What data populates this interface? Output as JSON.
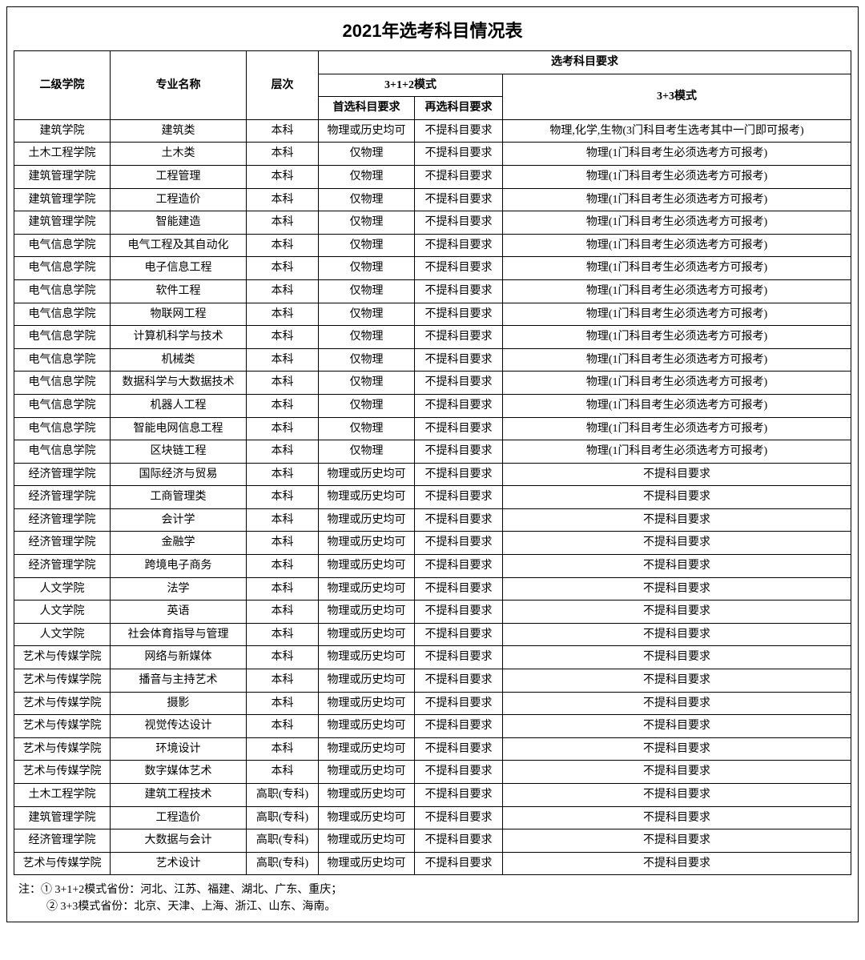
{
  "title": "2021年选考科目情况表",
  "header": {
    "col1": "二级学院",
    "col2": "专业名称",
    "col3": "层次",
    "group_top": "选考科目要求",
    "mode312": "3+1+2模式",
    "mode33": "3+3模式",
    "first_choice": "首选科目要求",
    "second_choice": "再选科目要求"
  },
  "rows": [
    {
      "college": "建筑学院",
      "major": "建筑类",
      "level": "本科",
      "first": "物理或历史均可",
      "second": "不提科目要求",
      "mode33": "物理,化学,生物(3门科目考生选考其中一门即可报考)"
    },
    {
      "college": "土木工程学院",
      "major": "土木类",
      "level": "本科",
      "first": "仅物理",
      "second": "不提科目要求",
      "mode33": "物理(1门科目考生必须选考方可报考)"
    },
    {
      "college": "建筑管理学院",
      "major": "工程管理",
      "level": "本科",
      "first": "仅物理",
      "second": "不提科目要求",
      "mode33": "物理(1门科目考生必须选考方可报考)"
    },
    {
      "college": "建筑管理学院",
      "major": "工程造价",
      "level": "本科",
      "first": "仅物理",
      "second": "不提科目要求",
      "mode33": "物理(1门科目考生必须选考方可报考)"
    },
    {
      "college": "建筑管理学院",
      "major": "智能建造",
      "level": "本科",
      "first": "仅物理",
      "second": "不提科目要求",
      "mode33": "物理(1门科目考生必须选考方可报考)"
    },
    {
      "college": "电气信息学院",
      "major": "电气工程及其自动化",
      "level": "本科",
      "first": "仅物理",
      "second": "不提科目要求",
      "mode33": "物理(1门科目考生必须选考方可报考)"
    },
    {
      "college": "电气信息学院",
      "major": "电子信息工程",
      "level": "本科",
      "first": "仅物理",
      "second": "不提科目要求",
      "mode33": "物理(1门科目考生必须选考方可报考)"
    },
    {
      "college": "电气信息学院",
      "major": "软件工程",
      "level": "本科",
      "first": "仅物理",
      "second": "不提科目要求",
      "mode33": "物理(1门科目考生必须选考方可报考)"
    },
    {
      "college": "电气信息学院",
      "major": "物联网工程",
      "level": "本科",
      "first": "仅物理",
      "second": "不提科目要求",
      "mode33": "物理(1门科目考生必须选考方可报考)"
    },
    {
      "college": "电气信息学院",
      "major": "计算机科学与技术",
      "level": "本科",
      "first": "仅物理",
      "second": "不提科目要求",
      "mode33": "物理(1门科目考生必须选考方可报考)"
    },
    {
      "college": "电气信息学院",
      "major": "机械类",
      "level": "本科",
      "first": "仅物理",
      "second": "不提科目要求",
      "mode33": "物理(1门科目考生必须选考方可报考)"
    },
    {
      "college": "电气信息学院",
      "major": "数据科学与大数据技术",
      "level": "本科",
      "first": "仅物理",
      "second": "不提科目要求",
      "mode33": "物理(1门科目考生必须选考方可报考)"
    },
    {
      "college": "电气信息学院",
      "major": "机器人工程",
      "level": "本科",
      "first": "仅物理",
      "second": "不提科目要求",
      "mode33": "物理(1门科目考生必须选考方可报考)"
    },
    {
      "college": "电气信息学院",
      "major": "智能电网信息工程",
      "level": "本科",
      "first": "仅物理",
      "second": "不提科目要求",
      "mode33": "物理(1门科目考生必须选考方可报考)"
    },
    {
      "college": "电气信息学院",
      "major": "区块链工程",
      "level": "本科",
      "first": "仅物理",
      "second": "不提科目要求",
      "mode33": "物理(1门科目考生必须选考方可报考)"
    },
    {
      "college": "经济管理学院",
      "major": "国际经济与贸易",
      "level": "本科",
      "first": "物理或历史均可",
      "second": "不提科目要求",
      "mode33": "不提科目要求"
    },
    {
      "college": "经济管理学院",
      "major": "工商管理类",
      "level": "本科",
      "first": "物理或历史均可",
      "second": "不提科目要求",
      "mode33": "不提科目要求"
    },
    {
      "college": "经济管理学院",
      "major": "会计学",
      "level": "本科",
      "first": "物理或历史均可",
      "second": "不提科目要求",
      "mode33": "不提科目要求"
    },
    {
      "college": "经济管理学院",
      "major": "金融学",
      "level": "本科",
      "first": "物理或历史均可",
      "second": "不提科目要求",
      "mode33": "不提科目要求"
    },
    {
      "college": "经济管理学院",
      "major": "跨境电子商务",
      "level": "本科",
      "first": "物理或历史均可",
      "second": "不提科目要求",
      "mode33": "不提科目要求"
    },
    {
      "college": "人文学院",
      "major": "法学",
      "level": "本科",
      "first": "物理或历史均可",
      "second": "不提科目要求",
      "mode33": "不提科目要求"
    },
    {
      "college": "人文学院",
      "major": "英语",
      "level": "本科",
      "first": "物理或历史均可",
      "second": "不提科目要求",
      "mode33": "不提科目要求"
    },
    {
      "college": "人文学院",
      "major": "社会体育指导与管理",
      "level": "本科",
      "first": "物理或历史均可",
      "second": "不提科目要求",
      "mode33": "不提科目要求"
    },
    {
      "college": "艺术与传媒学院",
      "major": "网络与新媒体",
      "level": "本科",
      "first": "物理或历史均可",
      "second": "不提科目要求",
      "mode33": "不提科目要求"
    },
    {
      "college": "艺术与传媒学院",
      "major": "播音与主持艺术",
      "level": "本科",
      "first": "物理或历史均可",
      "second": "不提科目要求",
      "mode33": "不提科目要求"
    },
    {
      "college": "艺术与传媒学院",
      "major": "摄影",
      "level": "本科",
      "first": "物理或历史均可",
      "second": "不提科目要求",
      "mode33": "不提科目要求"
    },
    {
      "college": "艺术与传媒学院",
      "major": "视觉传达设计",
      "level": "本科",
      "first": "物理或历史均可",
      "second": "不提科目要求",
      "mode33": "不提科目要求"
    },
    {
      "college": "艺术与传媒学院",
      "major": "环境设计",
      "level": "本科",
      "first": "物理或历史均可",
      "second": "不提科目要求",
      "mode33": "不提科目要求"
    },
    {
      "college": "艺术与传媒学院",
      "major": "数字媒体艺术",
      "level": "本科",
      "first": "物理或历史均可",
      "second": "不提科目要求",
      "mode33": "不提科目要求"
    },
    {
      "college": "土木工程学院",
      "major": "建筑工程技术",
      "level": "高职(专科)",
      "first": "物理或历史均可",
      "second": "不提科目要求",
      "mode33": "不提科目要求"
    },
    {
      "college": "建筑管理学院",
      "major": "工程造价",
      "level": "高职(专科)",
      "first": "物理或历史均可",
      "second": "不提科目要求",
      "mode33": "不提科目要求"
    },
    {
      "college": "经济管理学院",
      "major": "大数据与会计",
      "level": "高职(专科)",
      "first": "物理或历史均可",
      "second": "不提科目要求",
      "mode33": "不提科目要求"
    },
    {
      "college": "艺术与传媒学院",
      "major": "艺术设计",
      "level": "高职(专科)",
      "first": "物理或历史均可",
      "second": "不提科目要求",
      "mode33": "不提科目要求"
    }
  ],
  "notes": {
    "line1": "注：① 3+1+2模式省份：河北、江苏、福建、湖北、广东、重庆；",
    "line2": "② 3+3模式省份：北京、天津、上海、浙江、山东、海南。"
  }
}
